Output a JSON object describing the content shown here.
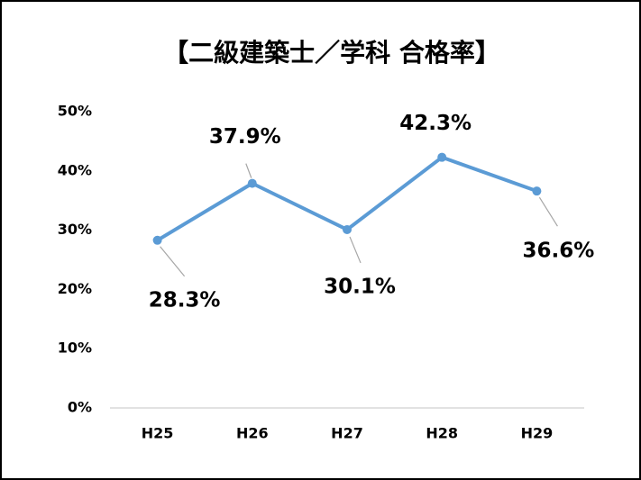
{
  "chart_data": {
    "type": "line",
    "title": "【二級建築士／学科 合格率】",
    "categories": [
      "H25",
      "H26",
      "H27",
      "H28",
      "H29"
    ],
    "series": [
      {
        "name": "合格率",
        "color": "#5b9bd5",
        "values": [
          28.3,
          37.9,
          30.1,
          42.3,
          36.6
        ],
        "value_labels": [
          "28.3%",
          "37.9%",
          "30.1%",
          "42.3%",
          "36.6%"
        ]
      }
    ],
    "ylim": [
      0,
      50
    ],
    "yticks": [
      {
        "value": 0,
        "label": "0%"
      },
      {
        "value": 10,
        "label": "10%"
      },
      {
        "value": 20,
        "label": "20%"
      },
      {
        "value": 30,
        "label": "30%"
      },
      {
        "value": 40,
        "label": "40%"
      },
      {
        "value": 50,
        "label": "50%"
      }
    ],
    "grid": false
  }
}
